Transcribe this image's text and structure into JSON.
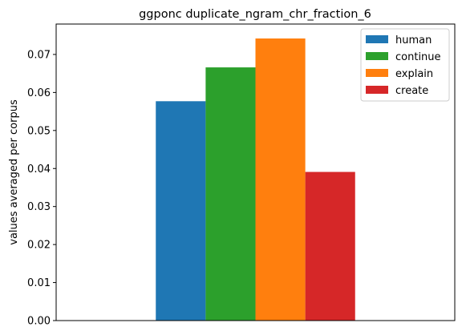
{
  "chart_data": {
    "type": "bar",
    "title": "ggponc duplicate_ngram_chr_fraction_6",
    "xlabel": "",
    "ylabel": "values averaged per corpus",
    "ylim": [
      0,
      0.078
    ],
    "yticks": [
      "0.00",
      "0.01",
      "0.02",
      "0.03",
      "0.04",
      "0.05",
      "0.06",
      "0.07"
    ],
    "ytick_values": [
      0,
      0.01,
      0.02,
      0.03,
      0.04,
      0.05,
      0.06,
      0.07
    ],
    "grid": false,
    "legend_position": "top-right",
    "series": [
      {
        "name": "human",
        "values": [
          0.0577
        ],
        "color": "#1f77b4"
      },
      {
        "name": "continue",
        "values": [
          0.0666
        ],
        "color": "#2ca02c"
      },
      {
        "name": "explain",
        "values": [
          0.0742
        ],
        "color": "#ff7f0e"
      },
      {
        "name": "create",
        "values": [
          0.0391
        ],
        "color": "#d62728"
      }
    ]
  }
}
